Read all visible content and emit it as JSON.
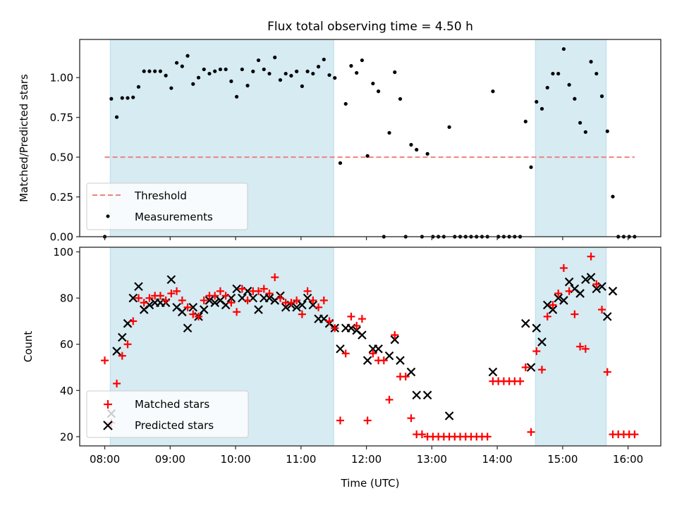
{
  "chart_data": [
    {
      "type": "scatter",
      "title": "Flux total observing time = 4.50 h",
      "xlabel": "",
      "ylabel": "Matched/Predicted stars",
      "xlim": [
        "07:37",
        "16:30"
      ],
      "ylim": [
        0,
        1.24
      ],
      "yticks": [
        "0.00",
        "0.25",
        "0.50",
        "0.75",
        "1.00"
      ],
      "ytick_values": [
        0,
        0.25,
        0.5,
        0.75,
        1.0
      ],
      "xtick_labels_visible": false,
      "grid": false,
      "legend": {
        "placement": "lower-left",
        "entries": [
          "Threshold",
          "Measurements"
        ]
      },
      "shaded_spans": [
        {
          "start": "08:05",
          "end": "11:30",
          "color": "#add8e6"
        },
        {
          "start": "14:35",
          "end": "15:40",
          "color": "#add8e6"
        }
      ],
      "threshold": {
        "name": "Threshold",
        "value": 0.5,
        "x_start": "08:00",
        "x_end": "16:06",
        "color": "#f08080",
        "style": "dashed"
      },
      "series": [
        {
          "name": "Measurements",
          "color": "#000000",
          "marker": "dot",
          "x": [
            "08:00",
            "08:06",
            "08:11",
            "08:16",
            "08:21",
            "08:26",
            "08:31",
            "08:36",
            "08:41",
            "08:46",
            "08:51",
            "08:56",
            "09:01",
            "09:06",
            "09:11",
            "09:16",
            "09:21",
            "09:26",
            "09:31",
            "09:36",
            "09:41",
            "09:46",
            "09:51",
            "09:56",
            "10:01",
            "10:06",
            "10:11",
            "10:16",
            "10:21",
            "10:26",
            "10:31",
            "10:36",
            "10:41",
            "10:46",
            "10:51",
            "10:56",
            "11:01",
            "11:06",
            "11:11",
            "11:16",
            "11:21",
            "11:26",
            "11:31",
            "11:36",
            "11:41",
            "11:46",
            "11:51",
            "11:56",
            "12:01",
            "12:06",
            "12:11",
            "12:16",
            "12:21",
            "12:26",
            "12:31",
            "12:36",
            "12:41",
            "12:46",
            "12:51",
            "12:56",
            "13:01",
            "13:06",
            "13:11",
            "13:16",
            "13:21",
            "13:26",
            "13:31",
            "13:36",
            "13:41",
            "13:46",
            "13:51",
            "13:56",
            "14:01",
            "14:06",
            "14:11",
            "14:16",
            "14:21",
            "14:26",
            "14:31",
            "14:36",
            "14:41",
            "14:46",
            "14:51",
            "14:56",
            "15:01",
            "15:06",
            "15:11",
            "15:16",
            "15:21",
            "15:26",
            "15:31",
            "15:36",
            "15:41",
            "15:46",
            "15:51",
            "15:56",
            "16:01",
            "16:06"
          ],
          "values": [
            0,
            0.867,
            0.752,
            0.872,
            0.872,
            0.876,
            0.942,
            1.04,
            1.04,
            1.04,
            1.04,
            1.013,
            0.934,
            1.093,
            1.071,
            1.137,
            0.96,
            1.0,
            1.052,
            1.025,
            1.04,
            1.052,
            1.052,
            0.977,
            0.88,
            1.052,
            0.95,
            1.039,
            1.109,
            1.052,
            1.025,
            1.127,
            0.985,
            1.025,
            1.012,
            1.039,
            0.946,
            1.039,
            1.025,
            1.069,
            1.114,
            1.016,
            0.998,
            0.463,
            0.835,
            1.074,
            1.03,
            1.109,
            0.508,
            0.963,
            0.914,
            0,
            0.653,
            1.034,
            0.866,
            0,
            0.578,
            0.547,
            0,
            0.521,
            0,
            0,
            0,
            0.689,
            0,
            0,
            0,
            0,
            0,
            0,
            0,
            0.914,
            0,
            0,
            0,
            0,
            0,
            0.724,
            0.437,
            0.848,
            0.804,
            0.937,
            1.025,
            1.025,
            1.18,
            0.955,
            0.867,
            0.716,
            0.658,
            1.1,
            1.025,
            0.883,
            0.663,
            0.252,
            0,
            0,
            0,
            0
          ]
        }
      ]
    },
    {
      "type": "scatter",
      "title": "",
      "xlabel": "Time (UTC)",
      "ylabel": "Count",
      "xlim": [
        "07:37",
        "16:30"
      ],
      "ylim": [
        16,
        102
      ],
      "yticks": [
        "20",
        "40",
        "60",
        "80",
        "100"
      ],
      "ytick_values": [
        20,
        40,
        60,
        80,
        100
      ],
      "xticks": [
        "08:00",
        "09:00",
        "10:00",
        "11:00",
        "12:00",
        "13:00",
        "14:00",
        "15:00",
        "16:00"
      ],
      "grid": false,
      "legend": {
        "placement": "lower-left",
        "entries": [
          "Matched stars",
          "Predicted stars"
        ]
      },
      "shaded_spans": [
        {
          "start": "08:05",
          "end": "11:30",
          "color": "#add8e6"
        },
        {
          "start": "14:35",
          "end": "15:40",
          "color": "#add8e6"
        }
      ],
      "x": [
        "08:00",
        "08:06",
        "08:11",
        "08:16",
        "08:21",
        "08:26",
        "08:31",
        "08:36",
        "08:41",
        "08:46",
        "08:51",
        "08:56",
        "09:01",
        "09:06",
        "09:11",
        "09:16",
        "09:21",
        "09:26",
        "09:31",
        "09:36",
        "09:41",
        "09:46",
        "09:51",
        "09:56",
        "10:01",
        "10:06",
        "10:11",
        "10:16",
        "10:21",
        "10:26",
        "10:31",
        "10:36",
        "10:41",
        "10:46",
        "10:51",
        "10:56",
        "11:01",
        "11:06",
        "11:11",
        "11:16",
        "11:21",
        "11:26",
        "11:31",
        "11:36",
        "11:41",
        "11:46",
        "11:51",
        "11:56",
        "12:01",
        "12:06",
        "12:11",
        "12:16",
        "12:21",
        "12:26",
        "12:31",
        "12:36",
        "12:41",
        "12:46",
        "12:51",
        "12:56",
        "13:01",
        "13:06",
        "13:11",
        "13:16",
        "13:21",
        "13:26",
        "13:31",
        "13:36",
        "13:41",
        "13:46",
        "13:51",
        "13:56",
        "14:01",
        "14:06",
        "14:11",
        "14:16",
        "14:21",
        "14:26",
        "14:31",
        "14:36",
        "14:41",
        "14:46",
        "14:51",
        "14:56",
        "15:01",
        "15:06",
        "15:11",
        "15:16",
        "15:21",
        "15:26",
        "15:31",
        "15:36",
        "15:41",
        "15:46",
        "15:51",
        "15:56",
        "16:01",
        "16:06"
      ],
      "series": [
        {
          "name": "Matched stars",
          "color": "#ff0000",
          "marker": "plus",
          "values": [
            53,
            26,
            43,
            55,
            60,
            70,
            80,
            78,
            80,
            81,
            81,
            79,
            82,
            83,
            79,
            76,
            73,
            72,
            79,
            81,
            81,
            83,
            81,
            78,
            74,
            84,
            79,
            83,
            83,
            84,
            82,
            89,
            80,
            78,
            78,
            79,
            73,
            83,
            79,
            76,
            79,
            70,
            67,
            27,
            56,
            72,
            68,
            71,
            27,
            56,
            53,
            53,
            36,
            64,
            46,
            46,
            28,
            21,
            21,
            20,
            20,
            20,
            20,
            20,
            20,
            20,
            20,
            20,
            20,
            20,
            20,
            44,
            44,
            44,
            44,
            44,
            44,
            50,
            22,
            57,
            49,
            72,
            77,
            82,
            93,
            83,
            73,
            59,
            58,
            98,
            86,
            75,
            48,
            21,
            21,
            21,
            21,
            21
          ]
        },
        {
          "name": "Predicted stars",
          "color": "#000000",
          "marker": "x",
          "values": [
            null,
            30,
            57,
            63,
            69,
            80,
            85,
            75,
            77,
            78,
            78,
            78,
            88,
            76,
            74,
            67,
            76,
            72,
            75,
            79,
            78,
            79,
            77,
            80,
            84,
            80,
            83,
            80,
            75,
            80,
            80,
            79,
            81,
            76,
            77,
            76,
            77,
            80,
            77,
            71,
            71,
            69,
            67,
            58,
            67,
            67,
            66,
            64,
            53,
            58,
            58,
            null,
            55,
            62,
            53,
            null,
            48,
            38,
            null,
            38,
            null,
            null,
            null,
            29,
            null,
            null,
            null,
            null,
            null,
            null,
            null,
            48,
            null,
            null,
            null,
            null,
            null,
            69,
            50,
            67,
            61,
            77,
            75,
            80,
            79,
            87,
            84,
            82,
            88,
            89,
            84,
            85,
            72,
            83,
            null,
            null,
            null,
            null
          ]
        }
      ]
    }
  ]
}
